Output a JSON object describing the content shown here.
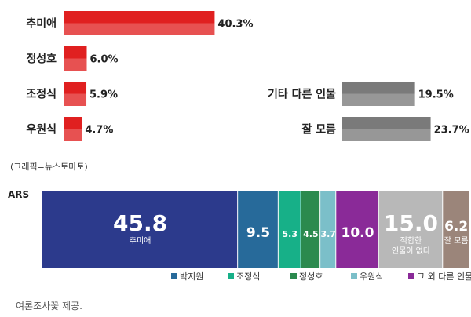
{
  "chart_data": [
    {
      "type": "bar",
      "orientation": "horizontal",
      "categories": [
        "추미애",
        "정성호",
        "조정식",
        "우원식",
        "기타 다른 인물",
        "잘 모름"
      ],
      "values": [
        40.3,
        6.0,
        5.9,
        4.7,
        19.5,
        23.7
      ],
      "value_labels": [
        "40.3%",
        "6.0%",
        "5.9%",
        "4.7%",
        "19.5%",
        "23.7%"
      ],
      "colors": [
        "#e02020",
        "#e02020",
        "#e02020",
        "#e02020",
        "#7a7a7a",
        "#7a7a7a"
      ],
      "xlim": [
        0,
        45
      ],
      "legend": "none",
      "grid": false
    },
    {
      "type": "bar",
      "orientation": "horizontal",
      "stacked": true,
      "categories": [
        "ARS"
      ],
      "series": [
        {
          "name": "추미애",
          "values": [
            45.8
          ],
          "label": "45.8",
          "sublabel": "추미애",
          "color": "#2c3a8c"
        },
        {
          "name": "박지원",
          "values": [
            9.5
          ],
          "label": "9.5",
          "sublabel": "",
          "color": "#276a9a"
        },
        {
          "name": "조정식",
          "values": [
            5.3
          ],
          "label": "5.3",
          "sublabel": "",
          "color": "#17b088"
        },
        {
          "name": "정성호",
          "values": [
            4.5
          ],
          "label": "4.5",
          "sublabel": "",
          "color": "#2b8a4e"
        },
        {
          "name": "우원식",
          "values": [
            3.7
          ],
          "label": "3.7",
          "sublabel": "",
          "color": "#7bbfc9"
        },
        {
          "name": "그 외 다른 인물",
          "values": [
            10.0
          ],
          "label": "10.0",
          "sublabel": "",
          "color": "#8a2a98"
        },
        {
          "name": "적합한 인물이 없다",
          "values": [
            15.0
          ],
          "label": "15.0",
          "sublabel": "적합한 인물이 없다",
          "color": "#b8b8b8"
        },
        {
          "name": "잘 모름",
          "values": [
            6.2
          ],
          "label": "6.2",
          "sublabel": "잘 모름",
          "color": "#9b857a"
        }
      ],
      "legend_items": [
        "박지원",
        "조정식",
        "정성호",
        "우원식",
        "그 외 다른 인물"
      ],
      "legend_placement": "bottom-right"
    }
  ],
  "credit": "(그래픽=뉴스토마토)",
  "source": "여론조사꽃 제공."
}
